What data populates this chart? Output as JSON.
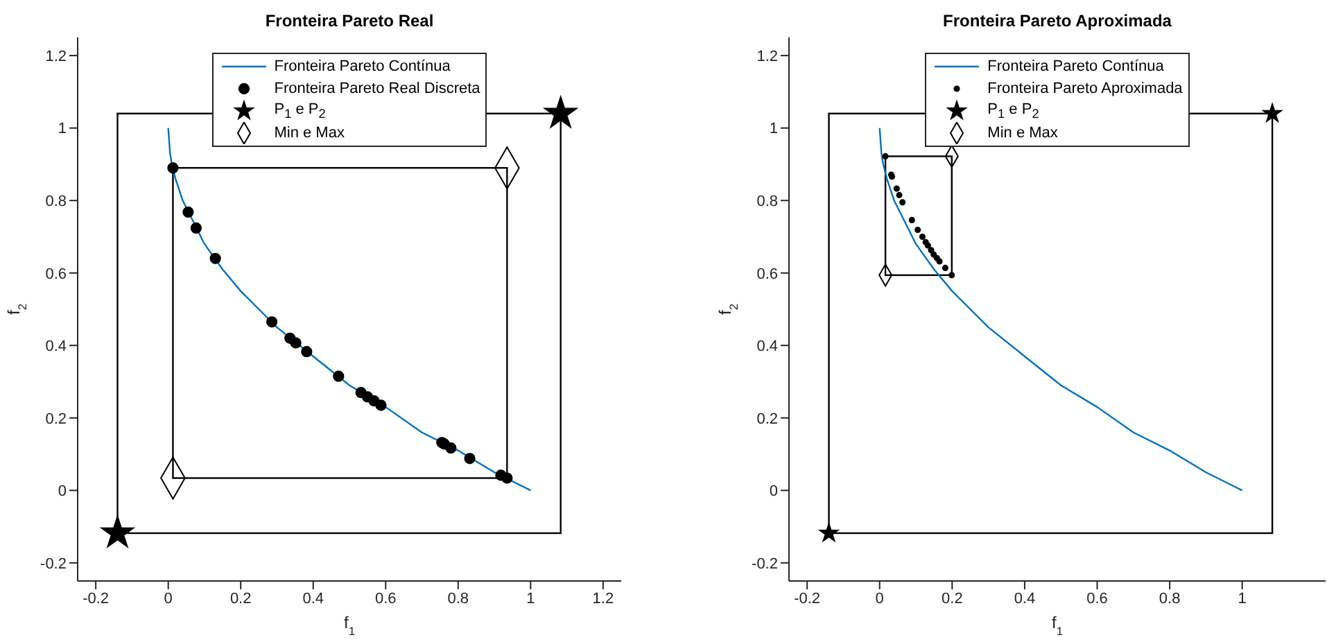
{
  "chart_data": [
    {
      "type": "scatter",
      "title": "Fronteira Pareto Real",
      "xlabel": "f$_{1}$",
      "ylabel": "f$_{2}$",
      "xlim": [
        -0.25,
        1.25
      ],
      "ylim": [
        -0.25,
        1.25
      ],
      "xticks": [
        -0.2,
        0,
        0.2,
        0.4,
        0.6,
        0.8,
        1,
        1.2
      ],
      "yticks": [
        -0.2,
        0,
        0.2,
        0.4,
        0.6,
        0.8,
        1,
        1.2
      ],
      "grid": false,
      "legend": "top",
      "series": [
        {
          "type": "line",
          "name": "Fronteira Pareto Contínua",
          "color": "#0072bd",
          "marker": "none",
          "x": [
            0,
            0.005,
            0.01,
            0.02,
            0.04,
            0.07,
            0.1,
            0.15,
            0.2,
            0.25,
            0.3,
            0.4,
            0.5,
            0.6,
            0.7,
            0.8,
            0.9,
            1
          ],
          "values": [
            1,
            0.93,
            0.9,
            0.86,
            0.8,
            0.74,
            0.68,
            0.61,
            0.55,
            0.5,
            0.45,
            0.37,
            0.29,
            0.23,
            0.16,
            0.11,
            0.05,
            0
          ]
        },
        {
          "type": "scatter",
          "name": "Fronteira Pareto Real Discreta",
          "color": "#000000",
          "marker": "circle",
          "x": [
            0.013,
            0.055,
            0.077,
            0.13,
            0.286,
            0.336,
            0.352,
            0.382,
            0.47,
            0.532,
            0.55,
            0.568,
            0.587,
            0.755,
            0.762,
            0.78,
            0.832,
            0.918,
            0.935
          ],
          "values": [
            0.89,
            0.768,
            0.724,
            0.64,
            0.465,
            0.42,
            0.407,
            0.383,
            0.315,
            0.27,
            0.258,
            0.247,
            0.235,
            0.132,
            0.128,
            0.117,
            0.088,
            0.042,
            0.034
          ]
        },
        {
          "type": "scatter",
          "name": "P$_{1}$ e P$_{2}$",
          "color": "#000000",
          "marker": "star",
          "x": [
            -0.14,
            1.083
          ],
          "values": [
            -0.118,
            1.04
          ]
        },
        {
          "type": "scatter",
          "name": "Min e Max",
          "color": "#000000",
          "marker": "diamond",
          "x": [
            0.013,
            0.935
          ],
          "values": [
            0.034,
            0.89
          ]
        }
      ]
    },
    {
      "type": "scatter",
      "title": "Fronteira Pareto Aproximada",
      "xlabel": "f$_{1}$",
      "ylabel": "f$_{2}$",
      "xlim": [
        -0.25,
        1.23
      ],
      "ylim": [
        -0.25,
        1.25
      ],
      "xticks": [
        -0.2,
        0,
        0.2,
        0.4,
        0.6,
        0.8,
        1
      ],
      "yticks": [
        -0.2,
        0,
        0.2,
        0.4,
        0.6,
        0.8,
        1,
        1.2
      ],
      "grid": false,
      "legend": "top",
      "series": [
        {
          "type": "line",
          "name": "Fronteira Pareto Contínua",
          "color": "#0072bd",
          "marker": "none",
          "x": [
            0,
            0.005,
            0.01,
            0.02,
            0.04,
            0.07,
            0.1,
            0.15,
            0.2,
            0.25,
            0.3,
            0.4,
            0.5,
            0.6,
            0.7,
            0.8,
            0.9,
            1
          ],
          "values": [
            1,
            0.93,
            0.9,
            0.86,
            0.8,
            0.74,
            0.68,
            0.61,
            0.55,
            0.5,
            0.45,
            0.37,
            0.29,
            0.23,
            0.16,
            0.11,
            0.05,
            0
          ]
        },
        {
          "type": "scatter",
          "name": "Fronteira Pareto Aproximada",
          "color": "#000000",
          "marker": "circle",
          "x": [
            0.016,
            0.032,
            0.034,
            0.047,
            0.054,
            0.063,
            0.089,
            0.105,
            0.118,
            0.127,
            0.133,
            0.142,
            0.149,
            0.158,
            0.165,
            0.181,
            0.199
          ],
          "values": [
            0.922,
            0.871,
            0.866,
            0.833,
            0.815,
            0.795,
            0.746,
            0.719,
            0.7,
            0.685,
            0.676,
            0.663,
            0.651,
            0.641,
            0.632,
            0.614,
            0.594
          ]
        },
        {
          "type": "scatter",
          "name": "P$_{1}$ e P$_{2}$",
          "color": "#000000",
          "marker": "star",
          "x": [
            -0.14,
            1.083
          ],
          "values": [
            -0.118,
            1.04
          ]
        },
        {
          "type": "scatter",
          "name": "Min e Max",
          "color": "#000000",
          "marker": "diamond",
          "x": [
            0.016,
            0.199
          ],
          "values": [
            0.594,
            0.922
          ]
        }
      ]
    }
  ]
}
